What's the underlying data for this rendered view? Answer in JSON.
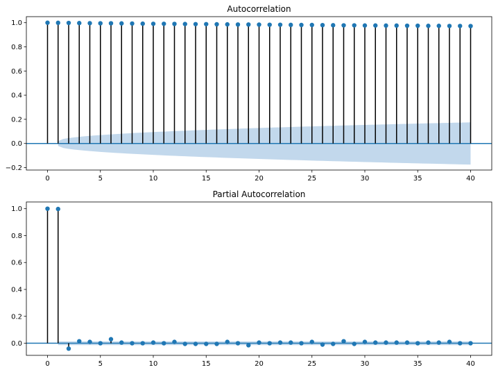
{
  "colors": {
    "marker": "#1f77b4",
    "stem": "#000000",
    "band": "#aecbe6",
    "zero_line": "#1f77b4"
  },
  "chart_data": [
    {
      "type": "stem",
      "title": "Autocorrelation",
      "xlim": [
        -2,
        42
      ],
      "ylim": [
        -0.22,
        1.05
      ],
      "xticks": [
        0,
        5,
        10,
        15,
        20,
        25,
        30,
        35,
        40
      ],
      "yticks": [
        -0.2,
        0.0,
        0.2,
        0.4,
        0.6,
        0.8,
        1.0
      ],
      "ytick_labels": [
        "−0.2",
        "0.0",
        "0.2",
        "0.4",
        "0.6",
        "0.8",
        "1.0"
      ],
      "lags": [
        0,
        1,
        2,
        3,
        4,
        5,
        6,
        7,
        8,
        9,
        10,
        11,
        12,
        13,
        14,
        15,
        16,
        17,
        18,
        19,
        20,
        21,
        22,
        23,
        24,
        25,
        26,
        27,
        28,
        29,
        30,
        31,
        32,
        33,
        34,
        35,
        36,
        37,
        38,
        39,
        40
      ],
      "values": [
        1.0,
        0.999,
        0.998,
        0.997,
        0.996,
        0.995,
        0.995,
        0.994,
        0.993,
        0.992,
        0.991,
        0.991,
        0.99,
        0.989,
        0.988,
        0.988,
        0.987,
        0.986,
        0.985,
        0.985,
        0.984,
        0.983,
        0.983,
        0.982,
        0.981,
        0.981,
        0.98,
        0.979,
        0.978,
        0.978,
        0.977,
        0.977,
        0.976,
        0.976,
        0.975,
        0.975,
        0.974,
        0.974,
        0.973,
        0.973,
        0.972
      ],
      "confidence_band": {
        "from_lag": 1,
        "to_lag": 40,
        "half_width_start": 0.02,
        "half_width_end": 0.175
      },
      "grid": false
    },
    {
      "type": "stem",
      "title": "Partial Autocorrelation",
      "xlim": [
        -2,
        42
      ],
      "ylim": [
        -0.09,
        1.05
      ],
      "xticks": [
        0,
        5,
        10,
        15,
        20,
        25,
        30,
        35,
        40
      ],
      "yticks": [
        0.0,
        0.2,
        0.4,
        0.6,
        0.8,
        1.0
      ],
      "ytick_labels": [
        "0.0",
        "0.2",
        "0.4",
        "0.6",
        "0.8",
        "1.0"
      ],
      "lags": [
        0,
        1,
        2,
        3,
        4,
        5,
        6,
        7,
        8,
        9,
        10,
        11,
        12,
        13,
        14,
        15,
        16,
        17,
        18,
        19,
        20,
        21,
        22,
        23,
        24,
        25,
        26,
        27,
        28,
        29,
        30,
        31,
        32,
        33,
        34,
        35,
        36,
        37,
        38,
        39,
        40
      ],
      "values": [
        1.0,
        0.998,
        -0.04,
        0.015,
        0.01,
        0.0,
        0.03,
        0.005,
        0.0,
        0.0,
        0.005,
        0.0,
        0.01,
        -0.005,
        -0.005,
        -0.005,
        -0.005,
        0.01,
        0.0,
        -0.015,
        0.005,
        0.0,
        0.005,
        0.005,
        0.0,
        0.01,
        -0.01,
        -0.005,
        0.015,
        -0.005,
        0.01,
        0.005,
        0.005,
        0.005,
        0.005,
        0.0,
        0.005,
        0.005,
        0.01,
        0.0,
        0.0
      ],
      "confidence_band": {
        "from_lag": 1,
        "to_lag": 40,
        "half_width_start": 0.014,
        "half_width_end": 0.014
      },
      "grid": false
    }
  ]
}
